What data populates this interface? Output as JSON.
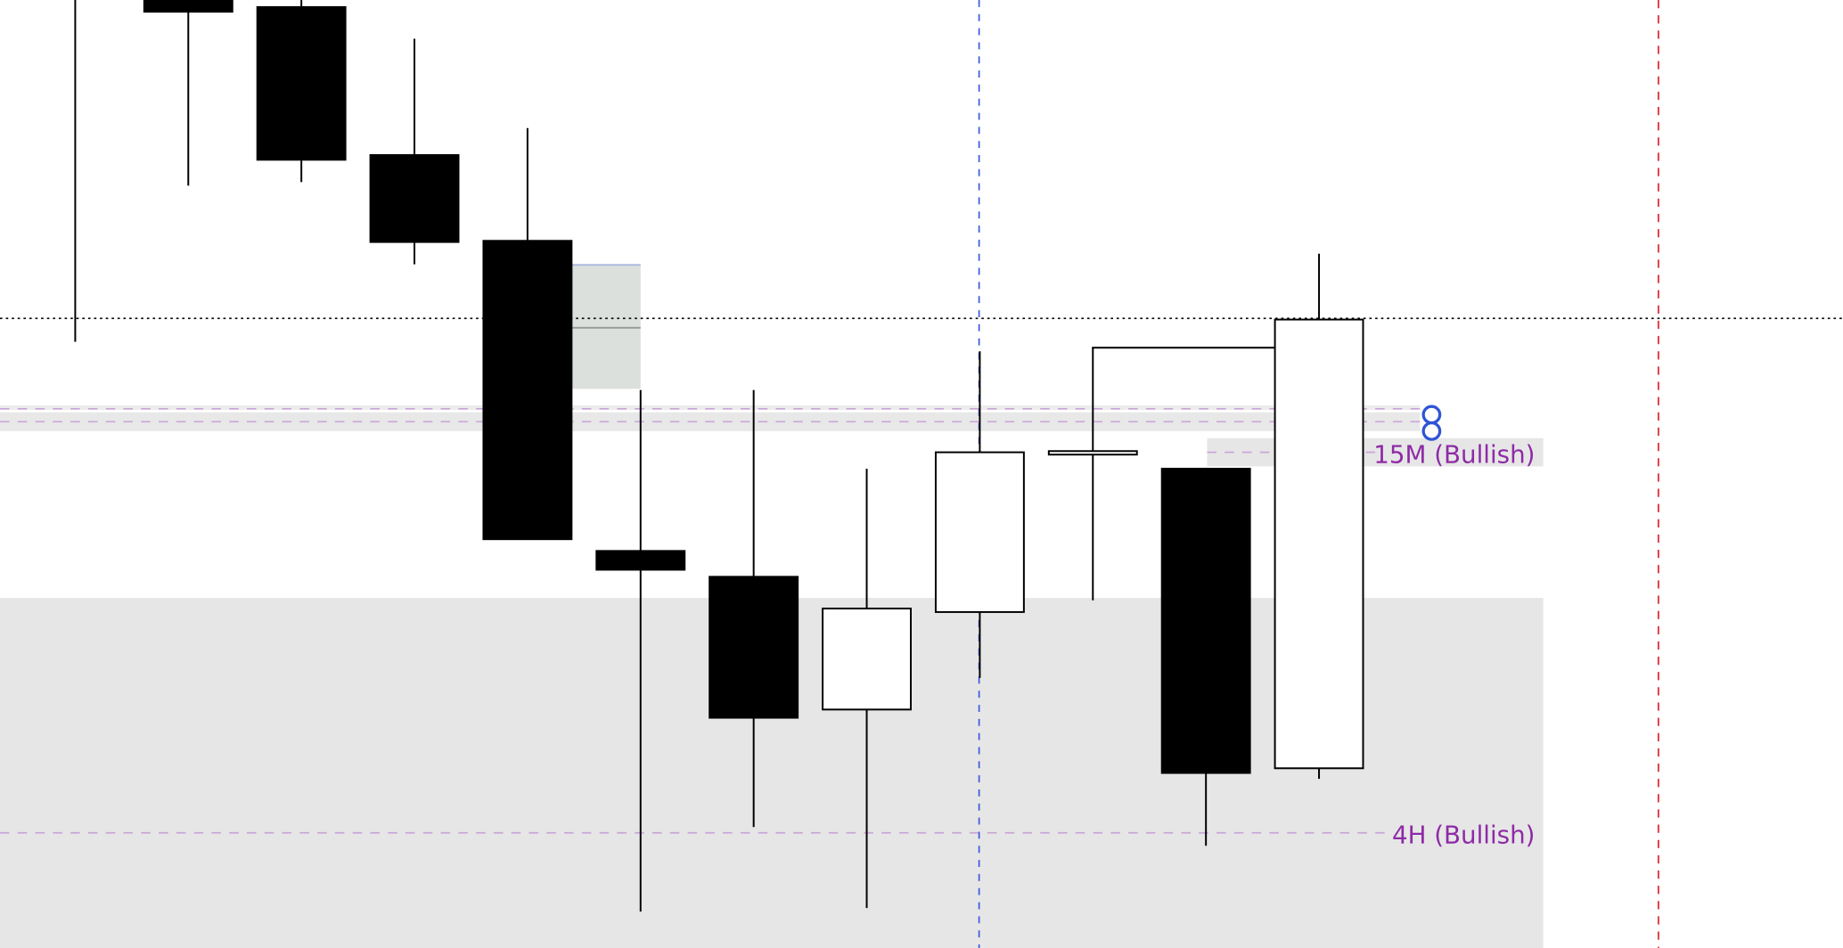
{
  "colors": {
    "bear_fill": "#000000",
    "bull_fill": "#ffffff",
    "zone_grey": "#e6e6e6",
    "fvg_fill": "#dce0dc",
    "level_purple": "#c9a6d9",
    "label_purple": "#8e2aa6",
    "cursor_blue": "#3b5bdb",
    "session_red": "#e0404a",
    "handle_blue": "#2f55d4"
  },
  "chart_data": {
    "type": "candlestick",
    "title": "",
    "xlabel": "",
    "ylabel": "",
    "ylim": [
      0,
      807
    ],
    "grid": false,
    "candles": [
      {
        "open": null,
        "high": 820,
        "low": 516,
        "close": null
      },
      {
        "open": 807,
        "high": 820,
        "low": 649,
        "close": 797
      },
      {
        "open": 801,
        "high": 810,
        "low": 652,
        "close": 671
      },
      {
        "open": 675,
        "high": 774,
        "low": 582,
        "close": 601
      },
      {
        "open": 602,
        "high": 698,
        "low": 348,
        "close": 348
      },
      {
        "open": 338,
        "high": 475,
        "low": 31,
        "close": 322
      },
      {
        "open": 316,
        "high": 475,
        "low": 103,
        "close": 196
      },
      {
        "open": 203,
        "high": 408,
        "low": 34,
        "close": 289
      },
      {
        "open": 286,
        "high": 508,
        "low": 230,
        "close": 422
      },
      {
        "open": 421,
        "high": 511,
        "low": 296,
        "close": 423
      },
      {
        "open": 408,
        "high": 408,
        "low": 87,
        "close": 149
      },
      {
        "open": 153,
        "high": 591,
        "low": 144,
        "close": 535
      }
    ],
    "levels": [
      {
        "label": "15M (Bullish)",
        "price": 422
      },
      {
        "label": "4H (Bullish)",
        "price": 98
      }
    ],
    "crosshair_price": 536
  }
}
